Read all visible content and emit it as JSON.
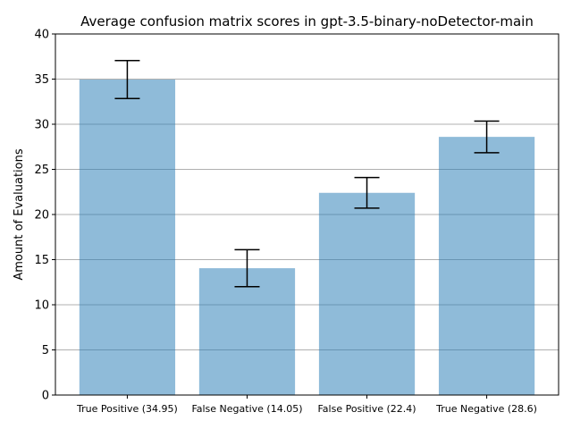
{
  "chart_data": {
    "type": "bar",
    "title": "Average confusion matrix scores in gpt-3.5-binary-noDetector-main",
    "xlabel": "",
    "ylabel": "Amount of Evaluations",
    "ylim": [
      0,
      40
    ],
    "yticks": [
      0,
      5,
      10,
      15,
      20,
      25,
      30,
      35,
      40
    ],
    "grid": "y",
    "categories": [
      "True Positive (34.95)",
      "False Negative (14.05)",
      "False Positive (22.4)",
      "True Negative (28.6)"
    ],
    "values": [
      34.95,
      14.05,
      22.4,
      28.6
    ],
    "errors_low": [
      32.85,
      12.0,
      20.7,
      26.85
    ],
    "errors_high": [
      37.05,
      16.1,
      24.1,
      30.35
    ],
    "bar_color": "#1f77b4"
  }
}
